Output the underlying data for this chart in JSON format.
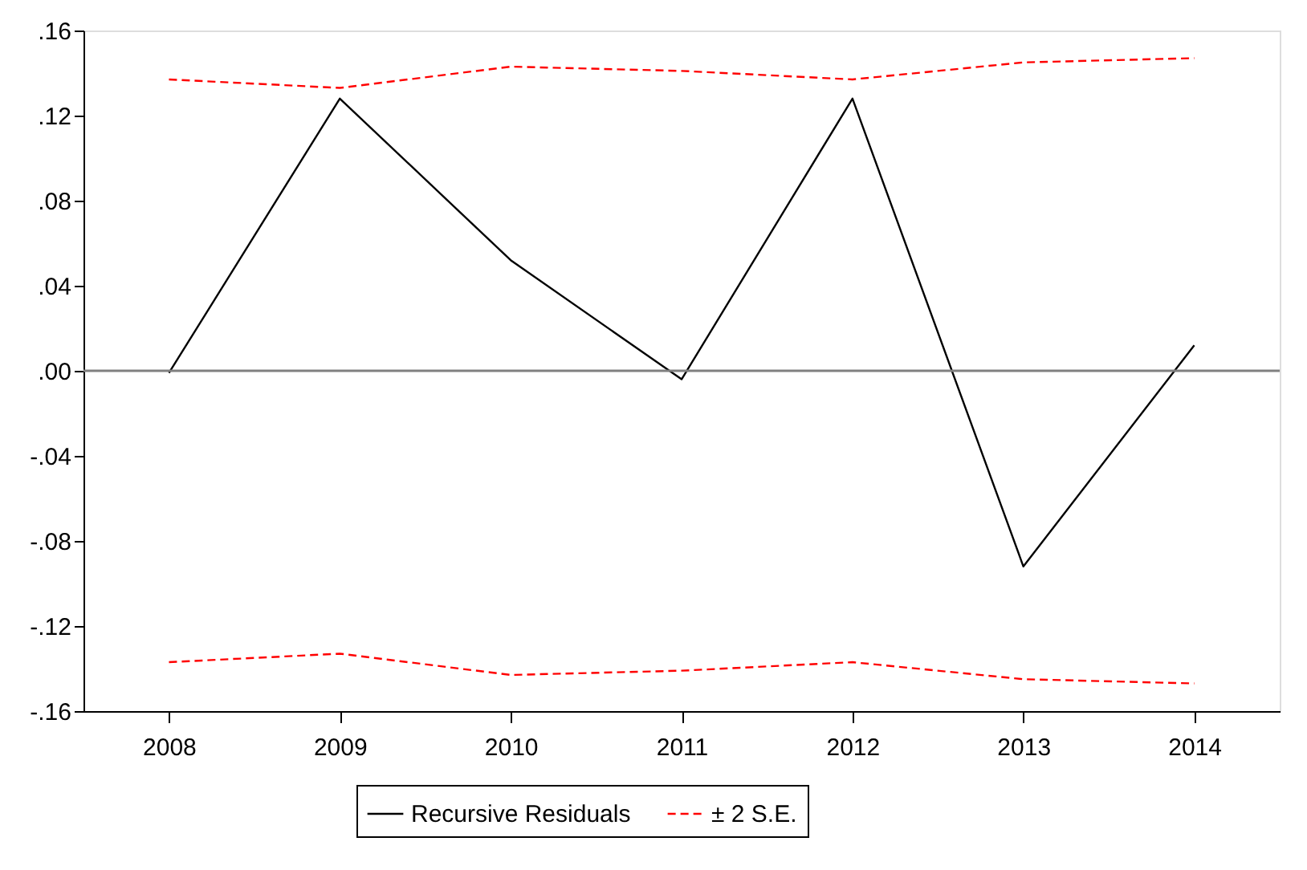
{
  "chart_data": {
    "type": "line",
    "categories": [
      "2008",
      "2009",
      "2010",
      "2011",
      "2012",
      "2013",
      "2014"
    ],
    "series": [
      {
        "name": "Recursive Residuals",
        "color": "#000000",
        "line_style": "solid",
        "values": [
          -0.001,
          0.128,
          0.052,
          -0.004,
          0.128,
          -0.092,
          0.012
        ]
      },
      {
        "name": "± 2 S.E.",
        "color": "#ff0000",
        "line_style": "dashed",
        "values": [
          0.137,
          0.133,
          0.143,
          0.141,
          0.137,
          0.145,
          0.147
        ]
      },
      {
        "color": "#ff0000",
        "line_style": "dashed",
        "values": [
          -0.137,
          -0.133,
          -0.143,
          -0.141,
          -0.137,
          -0.145,
          -0.147
        ]
      }
    ],
    "ylim": [
      -0.16,
      0.16
    ],
    "yticks": [
      {
        "value": -0.16,
        "label": "-.16"
      },
      {
        "value": -0.12,
        "label": "-.12"
      },
      {
        "value": -0.08,
        "label": "-.08"
      },
      {
        "value": -0.04,
        "label": "-.04"
      },
      {
        "value": 0,
        "label": ".00"
      },
      {
        "value": 0.04,
        "label": ".04"
      },
      {
        "value": 0.08,
        "label": ".08"
      },
      {
        "value": 0.12,
        "label": ".12"
      },
      {
        "value": 0.16,
        "label": ".16"
      }
    ],
    "ref_lines": [
      {
        "axis": "y",
        "value": 0,
        "color": "#808080",
        "line_style": "solid"
      }
    ],
    "grid": false,
    "legend": "bottom",
    "marker": "none"
  }
}
